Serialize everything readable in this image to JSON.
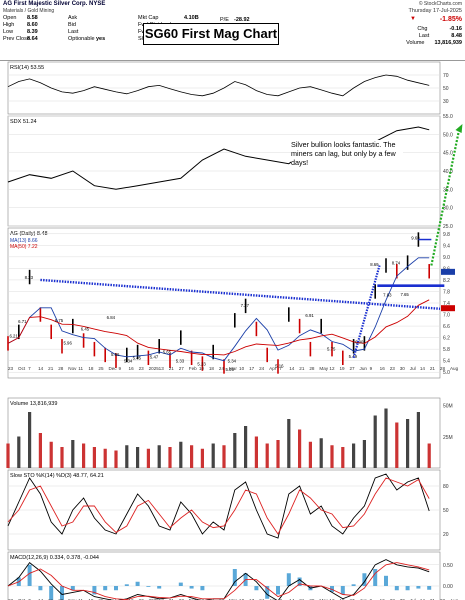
{
  "header": {
    "symbol": "AG",
    "company": "First Majestic Silver Corp.",
    "exchange": "NYSE",
    "sector": "Materials / Gold Mining",
    "date": "Thursday 17-Jul-2025",
    "source": "© StockCharts.com",
    "title_box": "SG60 First Mag Chart",
    "left_fields": [
      {
        "k": "Open",
        "v": "8.58"
      },
      {
        "k": "High",
        "v": "8.60"
      },
      {
        "k": "Low",
        "v": "8.39"
      },
      {
        "k": "Prev Close",
        "v": "8.64"
      }
    ],
    "mid_fields": [
      {
        "k": "Ask",
        "v": ""
      },
      {
        "k": "Bid",
        "v": ""
      },
      {
        "k": "Last",
        "v": ""
      },
      {
        "k": "Optionable",
        "v": "yes"
      }
    ],
    "right_fields": [
      {
        "k": "Mkt Cap",
        "v": "4.10B"
      },
      {
        "k": "Fwd Dividend",
        "v": ""
      },
      {
        "k": "Fwd Yield",
        "v": ""
      },
      {
        "k": "SCTR (MidCap)",
        "v": ""
      }
    ],
    "pe_label": "P/E",
    "pe_value": "-28.92",
    "change_pct": "-1.85%",
    "chg_label": "Chg",
    "chg_value": "-0.16",
    "last_label": "Last",
    "last_value": "8.48",
    "volume_label": "Volume",
    "volume_value": "13,816,939"
  },
  "annotation": "Silver bullion looks fantastic. The miners can lag, but only by a few days!",
  "chart_data": [
    {
      "type": "line",
      "panel": "rsi",
      "title": "RSI(14) 53.55",
      "y_ticks": [
        30,
        50,
        70
      ],
      "ylim": [
        10,
        90
      ],
      "x": [
        0,
        5,
        10,
        15,
        20,
        25,
        30,
        35,
        40,
        45,
        50,
        55,
        60,
        65,
        70,
        75,
        80,
        85,
        90,
        95,
        100,
        105,
        110,
        115,
        120,
        125,
        130,
        135,
        140,
        145,
        150,
        155,
        160,
        165,
        170,
        175,
        180,
        185,
        190,
        195
      ],
      "values": [
        52,
        60,
        64,
        58,
        50,
        44,
        42,
        46,
        52,
        48,
        44,
        41,
        46,
        52,
        54,
        49,
        44,
        40,
        38,
        42,
        50,
        60,
        55,
        46,
        40,
        38,
        44,
        50,
        52,
        47,
        42,
        38,
        50,
        60,
        66,
        70,
        68,
        62,
        58,
        54
      ]
    },
    {
      "type": "line",
      "panel": "sdx",
      "title": "SDX 51.24",
      "y_ticks": [
        25.0,
        30.0,
        35.0,
        40.0,
        45.0,
        50.0,
        55.0
      ],
      "ylim": [
        25,
        55
      ],
      "x": [
        0,
        10,
        20,
        30,
        40,
        50,
        60,
        70,
        80,
        90,
        100,
        110,
        120,
        130,
        140,
        150,
        160,
        170,
        180,
        190,
        195
      ],
      "values": [
        37,
        39,
        38,
        40,
        36,
        35,
        36,
        37,
        38,
        43,
        46,
        44,
        43,
        42,
        46,
        47,
        48,
        48,
        51,
        52,
        51.24
      ]
    },
    {
      "type": "line",
      "panel": "price",
      "title": "AG (Daily) 8.48",
      "legend": [
        "MA(13) 8.66",
        "MA(50) 7.22"
      ],
      "y_ticks": [
        5.0,
        5.4,
        5.8,
        6.2,
        6.6,
        7.0,
        7.4,
        7.8,
        8.2,
        8.6,
        9.0,
        9.4,
        9.8
      ],
      "ylim": [
        4.8,
        10.0
      ],
      "x_ticks": [
        "23",
        "Oct",
        "7",
        "14",
        "21",
        "28",
        "Nov",
        "11",
        "18",
        "25",
        "Dec",
        "9",
        "16",
        "23",
        "2025",
        "13",
        "21",
        "27",
        "Feb",
        "10",
        "18",
        "24",
        "Mar",
        "10",
        "17",
        "24",
        "Apr",
        "7",
        "14",
        "21",
        "28",
        "May",
        "12",
        "19",
        "27",
        "Jun",
        "9",
        "16",
        "23",
        "30",
        "Jul",
        "14",
        "21",
        "28",
        "Aug",
        "11"
      ],
      "x": [
        0,
        5,
        10,
        15,
        20,
        25,
        30,
        35,
        40,
        45,
        50,
        55,
        60,
        65,
        70,
        75,
        80,
        85,
        90,
        95,
        100,
        105,
        110,
        115,
        120,
        125,
        130,
        135,
        140,
        145,
        150,
        155,
        160,
        165,
        170,
        175,
        180,
        185,
        190,
        195
      ],
      "values": [
        6.0,
        6.4,
        8.3,
        7.0,
        6.4,
        5.9,
        6.6,
        6.1,
        5.8,
        5.6,
        5.4,
        5.6,
        5.7,
        5.5,
        5.9,
        5.4,
        6.2,
        5.5,
        5.3,
        5.7,
        5.2,
        6.8,
        7.3,
        6.5,
        5.6,
        5.2,
        7.0,
        6.6,
        5.8,
        6.6,
        5.8,
        5.5,
        5.9,
        6.0,
        7.8,
        8.7,
        8.5,
        8.8,
        9.6,
        8.5
      ],
      "price_labels": [
        {
          "x": 10,
          "y": 8.23,
          "t": "8.23"
        },
        {
          "x": 7,
          "y": 6.71,
          "t": "6.71"
        },
        {
          "x": 3,
          "y": 6.21,
          "t": "6.21"
        },
        {
          "x": 24,
          "y": 6.75,
          "t": "6.75"
        },
        {
          "x": 28,
          "y": 5.96,
          "t": "5.96"
        },
        {
          "x": 36,
          "y": 6.45,
          "t": "6.45"
        },
        {
          "x": 48,
          "y": 6.84,
          "t": "6.84"
        },
        {
          "x": 50,
          "y": 5.56,
          "t": "5.56"
        },
        {
          "x": 60,
          "y": 5.45,
          "t": "5.45"
        },
        {
          "x": 56,
          "y": 5.34,
          "t": "5.34"
        },
        {
          "x": 68,
          "y": 5.47,
          "t": "5.47"
        },
        {
          "x": 74,
          "y": 5.65,
          "t": "5.65"
        },
        {
          "x": 80,
          "y": 5.33,
          "t": "5.33"
        },
        {
          "x": 90,
          "y": 5.23,
          "t": "5.23"
        },
        {
          "x": 104,
          "y": 5.34,
          "t": "5.34"
        },
        {
          "x": 103,
          "y": 5.05,
          "t": "5.05"
        },
        {
          "x": 110,
          "y": 7.27,
          "t": "7.27"
        },
        {
          "x": 126,
          "y": 5.16,
          "t": "5.16"
        },
        {
          "x": 140,
          "y": 6.91,
          "t": "6.91"
        },
        {
          "x": 150,
          "y": 5.75,
          "t": "5.75"
        },
        {
          "x": 160,
          "y": 5.49,
          "t": "5.49"
        },
        {
          "x": 163,
          "y": 6.0,
          "t": "6.00"
        },
        {
          "x": 170,
          "y": 8.69,
          "t": "8.69"
        },
        {
          "x": 176,
          "y": 7.63,
          "t": "7.63"
        },
        {
          "x": 180,
          "y": 8.74,
          "t": "8.74"
        },
        {
          "x": 184,
          "y": 7.65,
          "t": "7.65"
        },
        {
          "x": 189,
          "y": 9.6,
          "t": "9.60"
        }
      ]
    },
    {
      "type": "bar",
      "panel": "volume",
      "title": "Volume 13,816,939",
      "y_ticks": [
        25,
        50
      ],
      "units": "M",
      "x": [
        0,
        5,
        10,
        15,
        20,
        25,
        30,
        35,
        40,
        45,
        50,
        55,
        60,
        65,
        70,
        75,
        80,
        85,
        90,
        95,
        100,
        105,
        110,
        115,
        120,
        125,
        130,
        135,
        140,
        145,
        150,
        155,
        160,
        165,
        170,
        175,
        180,
        185,
        190,
        195
      ],
      "values": [
        14,
        18,
        32,
        20,
        15,
        12,
        16,
        14,
        12,
        11,
        10,
        13,
        12,
        11,
        13,
        12,
        15,
        13,
        11,
        14,
        13,
        20,
        24,
        18,
        14,
        16,
        28,
        22,
        15,
        17,
        13,
        12,
        14,
        16,
        30,
        34,
        26,
        28,
        32,
        14
      ]
    },
    {
      "type": "line",
      "panel": "sto",
      "title": "Slow STO %K(14) %D(3) 48.77, 64.21",
      "y_ticks": [
        20,
        50,
        80
      ],
      "ylim": [
        0,
        100
      ],
      "x": [
        0,
        5,
        10,
        15,
        20,
        25,
        30,
        35,
        40,
        45,
        50,
        55,
        60,
        65,
        70,
        75,
        80,
        85,
        90,
        95,
        100,
        105,
        110,
        115,
        120,
        125,
        130,
        135,
        140,
        145,
        150,
        155,
        160,
        165,
        170,
        175,
        180,
        185,
        190,
        195
      ],
      "k_values": [
        30,
        60,
        90,
        70,
        35,
        20,
        50,
        65,
        40,
        25,
        20,
        45,
        70,
        55,
        30,
        25,
        60,
        45,
        20,
        35,
        25,
        75,
        85,
        50,
        20,
        15,
        70,
        80,
        45,
        55,
        30,
        20,
        40,
        55,
        90,
        95,
        75,
        85,
        90,
        48.77
      ],
      "d_values": [
        35,
        50,
        75,
        80,
        55,
        30,
        35,
        55,
        55,
        35,
        22,
        30,
        55,
        62,
        45,
        28,
        40,
        50,
        35,
        28,
        30,
        50,
        75,
        70,
        40,
        20,
        45,
        75,
        65,
        50,
        45,
        28,
        30,
        45,
        70,
        90,
        85,
        80,
        88,
        64.21
      ]
    },
    {
      "type": "line",
      "panel": "macd",
      "title": "MACD(12,26,9) 0.334, 0.378, -0.044",
      "y_ticks": [
        -0.5,
        0.0,
        0.5
      ],
      "ylim": [
        -0.8,
        0.8
      ],
      "x": [
        0,
        5,
        10,
        15,
        20,
        25,
        30,
        35,
        40,
        45,
        50,
        55,
        60,
        65,
        70,
        75,
        80,
        85,
        90,
        95,
        100,
        105,
        110,
        115,
        120,
        125,
        130,
        135,
        140,
        145,
        150,
        155,
        160,
        165,
        170,
        175,
        180,
        185,
        190,
        195
      ],
      "macd_values": [
        0.0,
        0.2,
        0.55,
        0.35,
        0.05,
        -0.2,
        -0.15,
        -0.1,
        -0.25,
        -0.3,
        -0.35,
        -0.3,
        -0.2,
        -0.25,
        -0.3,
        -0.28,
        -0.2,
        -0.28,
        -0.35,
        -0.3,
        -0.3,
        0.1,
        0.3,
        0.1,
        -0.2,
        -0.35,
        0.0,
        0.15,
        -0.05,
        0.0,
        -0.15,
        -0.3,
        -0.2,
        0.1,
        0.5,
        0.62,
        0.5,
        0.45,
        0.42,
        0.334
      ],
      "signal_values": [
        0.0,
        0.1,
        0.3,
        0.4,
        0.25,
        0.0,
        -0.1,
        -0.1,
        -0.15,
        -0.25,
        -0.3,
        -0.32,
        -0.25,
        -0.24,
        -0.27,
        -0.28,
        -0.24,
        -0.25,
        -0.3,
        -0.3,
        -0.3,
        -0.1,
        0.15,
        0.15,
        -0.05,
        -0.25,
        -0.15,
        0.05,
        0.0,
        0.0,
        -0.08,
        -0.2,
        -0.22,
        -0.05,
        0.3,
        0.5,
        0.55,
        0.5,
        0.45,
        0.378
      ],
      "hist_values": [
        0.0,
        0.1,
        0.25,
        -0.05,
        -0.2,
        -0.2,
        -0.05,
        0.0,
        -0.1,
        -0.05,
        -0.05,
        0.02,
        0.05,
        -0.01,
        -0.03,
        0.0,
        0.04,
        -0.03,
        -0.05,
        0.0,
        0.0,
        0.2,
        0.15,
        -0.05,
        -0.15,
        -0.1,
        0.15,
        0.1,
        -0.05,
        0.0,
        -0.07,
        -0.1,
        0.02,
        0.15,
        0.2,
        0.12,
        -0.05,
        -0.05,
        -0.03,
        -0.044
      ]
    }
  ]
}
